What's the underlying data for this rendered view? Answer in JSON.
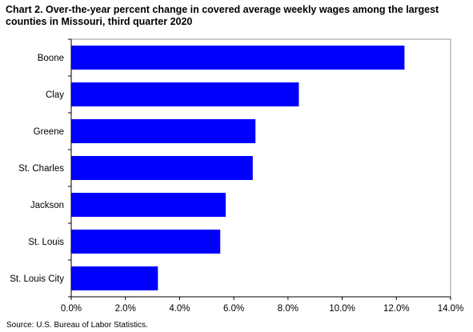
{
  "title_line1": "Chart 2. Over-the-year percent change in covered average weekly wages among the largest",
  "title_line2": "counties  in Missouri,  third  quarter 2020",
  "source": "Source: U.S. Bureau of Labor Statistics.",
  "colors": {
    "bar": "#0000ff",
    "axis": "#000000",
    "border": "#808080"
  },
  "chart_data": {
    "type": "bar",
    "orientation": "horizontal",
    "title": "Chart 2. Over-the-year percent change in covered average weekly wages among the largest counties in Missouri, third quarter 2020",
    "xlabel": "",
    "ylabel": "",
    "categories": [
      "Boone",
      "Clay",
      "Greene",
      "St. Charles",
      "Jackson",
      "St. Louis",
      "St. Louis City"
    ],
    "values": [
      12.3,
      8.4,
      6.8,
      6.7,
      5.7,
      5.5,
      3.2
    ],
    "unit": "percent",
    "xlim": [
      0,
      14
    ],
    "xticks": [
      0,
      2,
      4,
      6,
      8,
      10,
      12,
      14
    ],
    "xtick_labels": [
      "0.0%",
      "2.0%",
      "4.0%",
      "6.0%",
      "8.0%",
      "10.0%",
      "12.0%",
      "14.0%"
    ],
    "grid": false,
    "legend": "none"
  }
}
